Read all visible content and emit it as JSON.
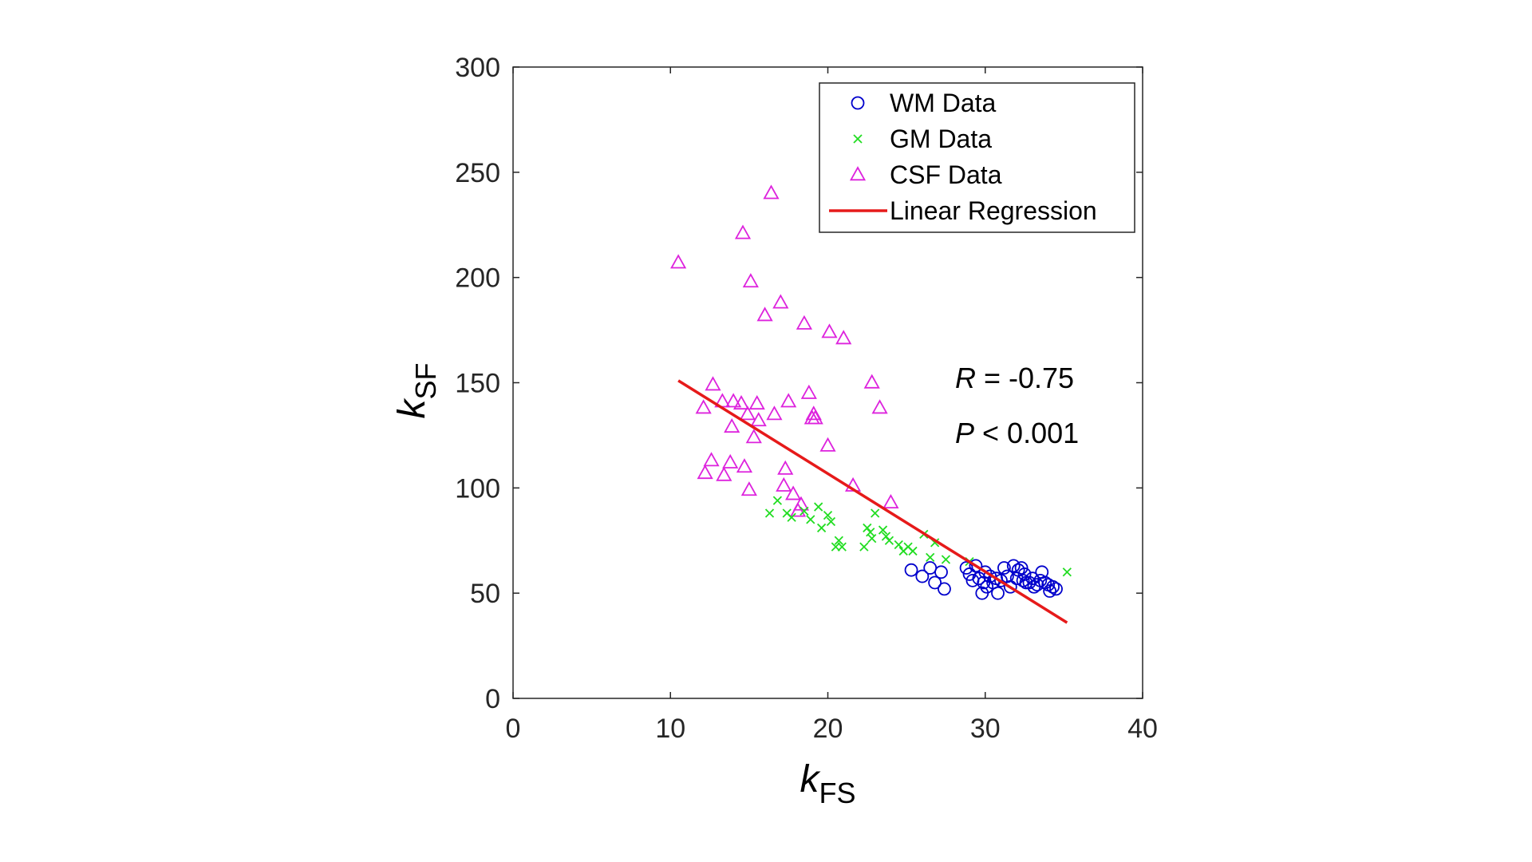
{
  "chart_data": {
    "type": "scatter",
    "xlabel": {
      "main": "k",
      "sub": "FS"
    },
    "ylabel": {
      "main": "k",
      "sub": "SF"
    },
    "xlim": [
      0,
      40
    ],
    "ylim": [
      0,
      300
    ],
    "xticks": [
      0,
      10,
      20,
      30,
      40
    ],
    "yticks": [
      0,
      50,
      100,
      150,
      200,
      250,
      300
    ],
    "grid": false,
    "legend_position": "top-right",
    "series": [
      {
        "name": "WM Data",
        "marker": "circle",
        "color": "#0000CC",
        "points": [
          [
            25.3,
            61
          ],
          [
            26.0,
            58
          ],
          [
            26.5,
            62
          ],
          [
            26.8,
            55
          ],
          [
            27.2,
            60
          ],
          [
            27.4,
            52
          ],
          [
            28.8,
            62
          ],
          [
            29.0,
            59
          ],
          [
            29.2,
            56
          ],
          [
            29.4,
            63
          ],
          [
            29.6,
            57
          ],
          [
            29.8,
            50
          ],
          [
            29.9,
            55
          ],
          [
            30.0,
            60
          ],
          [
            30.1,
            53
          ],
          [
            30.3,
            58
          ],
          [
            30.5,
            55
          ],
          [
            30.7,
            57
          ],
          [
            30.8,
            50
          ],
          [
            31.0,
            56
          ],
          [
            31.2,
            62
          ],
          [
            31.4,
            58
          ],
          [
            31.6,
            53
          ],
          [
            31.8,
            63
          ],
          [
            32.0,
            57
          ],
          [
            32.1,
            61
          ],
          [
            32.3,
            62
          ],
          [
            32.4,
            56
          ],
          [
            32.5,
            59
          ],
          [
            32.6,
            55
          ],
          [
            32.8,
            55
          ],
          [
            33.0,
            57
          ],
          [
            33.1,
            53
          ],
          [
            33.3,
            54
          ],
          [
            33.5,
            56
          ],
          [
            33.6,
            60
          ],
          [
            33.8,
            55
          ],
          [
            34.0,
            54
          ],
          [
            34.1,
            51
          ],
          [
            34.3,
            53
          ],
          [
            34.5,
            52
          ]
        ]
      },
      {
        "name": "GM Data",
        "marker": "x",
        "color": "#22DD22",
        "points": [
          [
            16.3,
            88
          ],
          [
            16.8,
            94
          ],
          [
            17.4,
            88
          ],
          [
            17.7,
            86
          ],
          [
            18.5,
            89
          ],
          [
            18.9,
            85
          ],
          [
            19.4,
            91
          ],
          [
            19.6,
            81
          ],
          [
            20.0,
            87
          ],
          [
            20.2,
            84
          ],
          [
            20.5,
            72
          ],
          [
            20.7,
            75
          ],
          [
            20.9,
            72
          ],
          [
            22.3,
            72
          ],
          [
            22.5,
            81
          ],
          [
            22.7,
            79
          ],
          [
            22.8,
            76
          ],
          [
            23.0,
            88
          ],
          [
            23.5,
            80
          ],
          [
            23.7,
            77
          ],
          [
            23.9,
            75
          ],
          [
            24.5,
            73
          ],
          [
            24.8,
            70
          ],
          [
            25.1,
            72
          ],
          [
            25.4,
            70
          ],
          [
            26.1,
            78
          ],
          [
            26.5,
            67
          ],
          [
            26.8,
            74
          ],
          [
            27.5,
            66
          ],
          [
            29.0,
            65
          ],
          [
            35.2,
            60
          ]
        ]
      },
      {
        "name": "CSF Data",
        "marker": "triangle",
        "color": "#DD22DD",
        "points": [
          [
            10.5,
            207
          ],
          [
            12.1,
            138
          ],
          [
            12.2,
            107
          ],
          [
            12.6,
            113
          ],
          [
            12.7,
            149
          ],
          [
            13.3,
            141
          ],
          [
            13.4,
            106
          ],
          [
            13.8,
            112
          ],
          [
            13.9,
            129
          ],
          [
            14.0,
            141
          ],
          [
            14.5,
            140
          ],
          [
            14.6,
            221
          ],
          [
            14.7,
            110
          ],
          [
            14.9,
            135
          ],
          [
            15.0,
            99
          ],
          [
            15.1,
            198
          ],
          [
            15.3,
            124
          ],
          [
            15.5,
            140
          ],
          [
            15.6,
            132
          ],
          [
            16.0,
            182
          ],
          [
            16.4,
            240
          ],
          [
            16.6,
            135
          ],
          [
            17.0,
            188
          ],
          [
            17.2,
            101
          ],
          [
            17.3,
            109
          ],
          [
            17.5,
            141
          ],
          [
            17.8,
            97
          ],
          [
            18.1,
            89
          ],
          [
            18.3,
            92
          ],
          [
            18.5,
            178
          ],
          [
            18.8,
            145
          ],
          [
            19.0,
            133
          ],
          [
            19.1,
            135
          ],
          [
            19.2,
            133
          ],
          [
            20.0,
            120
          ],
          [
            20.1,
            174
          ],
          [
            21.0,
            171
          ],
          [
            21.6,
            101
          ],
          [
            22.8,
            150
          ],
          [
            23.3,
            138
          ],
          [
            24.0,
            93
          ]
        ]
      }
    ],
    "regression": {
      "name": "Linear Regression",
      "color": "#E61A1A",
      "x": [
        10.5,
        35.2
      ],
      "y": [
        151,
        36
      ]
    },
    "annotations": [
      {
        "italic": "R",
        "text": " = -0.75"
      },
      {
        "italic": "P",
        "text": " < 0.001"
      }
    ]
  }
}
